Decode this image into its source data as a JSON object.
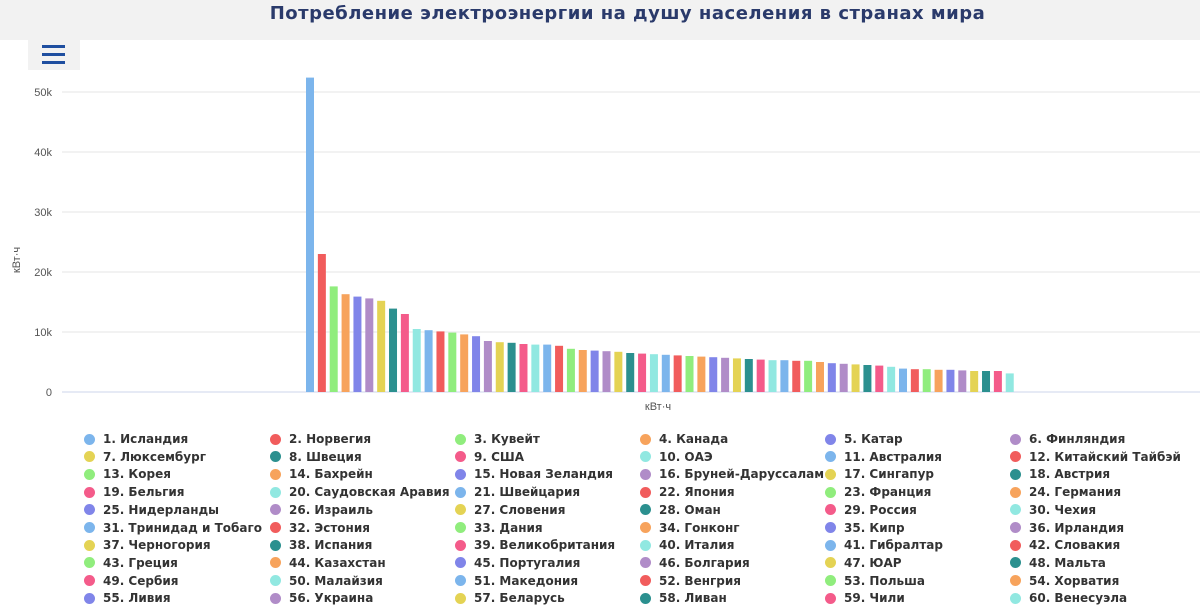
{
  "page": {
    "title": "Потребление электроэнергии на душу населения в странах мира"
  },
  "chart_data": {
    "type": "bar",
    "title": "Потребление электроэнергии на душу населения в странах мира",
    "xlabel": "кВт·ч",
    "ylabel": "кВт·ч",
    "ylim": [
      0,
      55000
    ],
    "yticks": [
      0,
      10000,
      20000,
      30000,
      40000,
      50000
    ],
    "ytick_labels": [
      "0",
      "10k",
      "20k",
      "30k",
      "40k",
      "50k"
    ],
    "grid": true,
    "legend": "bottom",
    "palette": [
      "#7cb5ec",
      "#f15c5c",
      "#90ed7d",
      "#f7a35c",
      "#8085e9",
      "#b08cc8",
      "#e4d354",
      "#2b908f",
      "#f45b8a",
      "#91e8e1"
    ],
    "series": [
      {
        "name": "1. Исландия",
        "value": 52400
      },
      {
        "name": "2. Норвегия",
        "value": 23000
      },
      {
        "name": "3. Кувейт",
        "value": 17600
      },
      {
        "name": "4. Канада",
        "value": 16300
      },
      {
        "name": "5. Катар",
        "value": 15900
      },
      {
        "name": "6. Финляндия",
        "value": 15600
      },
      {
        "name": "7. Люксембург",
        "value": 15200
      },
      {
        "name": "8. Швеция",
        "value": 13900
      },
      {
        "name": "9. США",
        "value": 13000
      },
      {
        "name": "10. ОАЭ",
        "value": 10500
      },
      {
        "name": "11. Австралия",
        "value": 10300
      },
      {
        "name": "12. Китайский Тайбэй",
        "value": 10100
      },
      {
        "name": "13. Корея",
        "value": 9900
      },
      {
        "name": "14. Бахрейн",
        "value": 9600
      },
      {
        "name": "15. Новая Зеландия",
        "value": 9300
      },
      {
        "name": "16. Бруней-Даруссалам",
        "value": 8500
      },
      {
        "name": "17. Сингапур",
        "value": 8300
      },
      {
        "name": "18. Австрия",
        "value": 8200
      },
      {
        "name": "19. Бельгия",
        "value": 8000
      },
      {
        "name": "20. Саудовская Аравия",
        "value": 7900
      },
      {
        "name": "21. Швейцария",
        "value": 7900
      },
      {
        "name": "22. Япония",
        "value": 7700
      },
      {
        "name": "23. Франция",
        "value": 7200
      },
      {
        "name": "24. Германия",
        "value": 7000
      },
      {
        "name": "25. Нидерланды",
        "value": 6900
      },
      {
        "name": "26. Израиль",
        "value": 6800
      },
      {
        "name": "27. Словения",
        "value": 6700
      },
      {
        "name": "28. Оман",
        "value": 6500
      },
      {
        "name": "29. Россия",
        "value": 6400
      },
      {
        "name": "30. Чехия",
        "value": 6300
      },
      {
        "name": "31. Тринидад и Тобаго",
        "value": 6200
      },
      {
        "name": "32. Эстония",
        "value": 6100
      },
      {
        "name": "33. Дания",
        "value": 6000
      },
      {
        "name": "34. Гонконг",
        "value": 5900
      },
      {
        "name": "35. Кипр",
        "value": 5800
      },
      {
        "name": "36. Ирландия",
        "value": 5700
      },
      {
        "name": "37. Черногория",
        "value": 5600
      },
      {
        "name": "38. Испания",
        "value": 5500
      },
      {
        "name": "39. Великобритания",
        "value": 5400
      },
      {
        "name": "40. Италия",
        "value": 5300
      },
      {
        "name": "41. Гибралтар",
        "value": 5300
      },
      {
        "name": "42. Словакия",
        "value": 5200
      },
      {
        "name": "43. Греция",
        "value": 5200
      },
      {
        "name": "44. Казахстан",
        "value": 5000
      },
      {
        "name": "45. Португалия",
        "value": 4800
      },
      {
        "name": "46. Болгария",
        "value": 4700
      },
      {
        "name": "47. ЮАР",
        "value": 4600
      },
      {
        "name": "48. Мальта",
        "value": 4500
      },
      {
        "name": "49. Сербия",
        "value": 4400
      },
      {
        "name": "50. Малайзия",
        "value": 4200
      },
      {
        "name": "51. Македония",
        "value": 3900
      },
      {
        "name": "52. Венгрия",
        "value": 3800
      },
      {
        "name": "53. Польша",
        "value": 3800
      },
      {
        "name": "54. Хорватия",
        "value": 3700
      },
      {
        "name": "55. Ливия",
        "value": 3700
      },
      {
        "name": "56. Украина",
        "value": 3600
      },
      {
        "name": "57. Беларусь",
        "value": 3500
      },
      {
        "name": "58. Ливан",
        "value": 3500
      },
      {
        "name": "59. Чили",
        "value": 3500
      },
      {
        "name": "60. Венесуэла",
        "value": 3100
      }
    ]
  },
  "icons": {
    "menu": "hamburger-menu-icon"
  }
}
